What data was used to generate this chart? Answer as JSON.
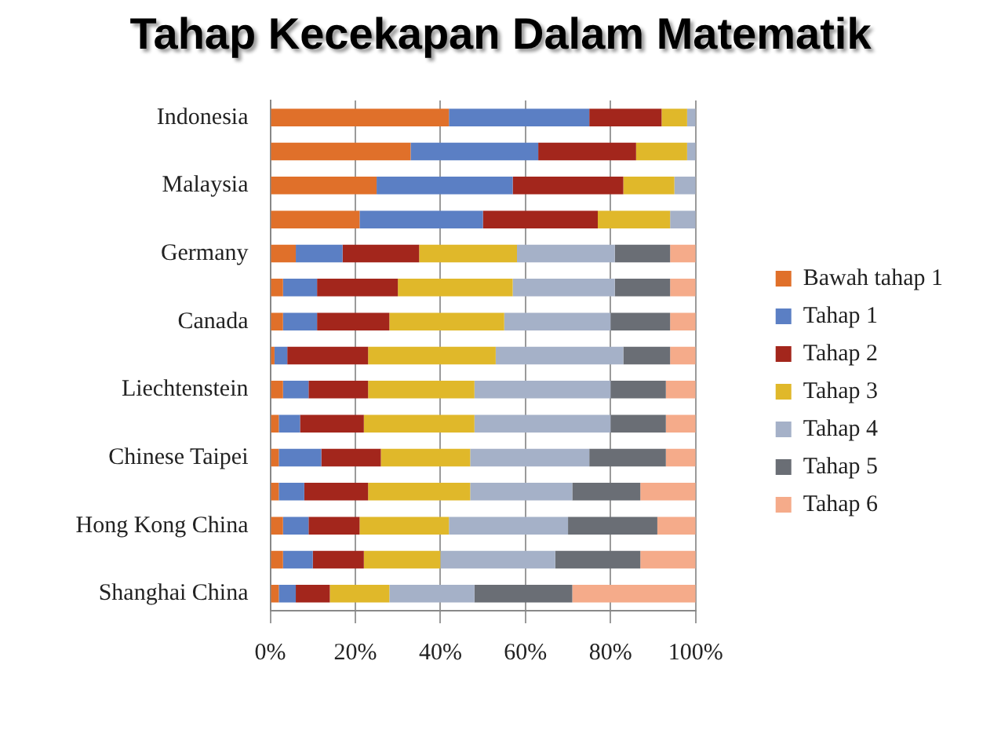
{
  "chart_data": {
    "type": "bar",
    "orientation": "horizontal",
    "stacked": true,
    "title": "Tahap Kecekapan Dalam Matematik",
    "categories": [
      "Indonesia",
      null,
      "Malaysia",
      null,
      "Germany",
      null,
      "Canada",
      null,
      "Liechtenstein",
      null,
      "Chinese Taipei",
      null,
      "Hong Kong China",
      null,
      "Shanghai China"
    ],
    "series": [
      {
        "name": "Bawah tahap 1",
        "color": "#e0702a",
        "values": [
          42,
          33,
          25,
          21,
          6,
          3,
          3,
          1,
          3,
          2,
          2,
          2,
          3,
          3,
          2
        ]
      },
      {
        "name": "Tahap 1",
        "color": "#5b7fc4",
        "values": [
          33,
          30,
          32,
          29,
          11,
          8,
          8,
          3,
          6,
          5,
          10,
          6,
          6,
          7,
          4
        ]
      },
      {
        "name": "Tahap 2",
        "color": "#a3261c",
        "values": [
          17,
          23,
          26,
          27,
          18,
          19,
          17,
          19,
          14,
          15,
          14,
          15,
          12,
          12,
          8
        ]
      },
      {
        "name": "Tahap 3",
        "color": "#e0b82a",
        "values": [
          6,
          12,
          12,
          17,
          23,
          27,
          27,
          30,
          25,
          26,
          21,
          24,
          21,
          18,
          14
        ]
      },
      {
        "name": "Tahap 4",
        "color": "#a5b1c8",
        "values": [
          2,
          2,
          5,
          6,
          23,
          24,
          25,
          30,
          32,
          32,
          28,
          24,
          28,
          27,
          20
        ]
      },
      {
        "name": "Tahap 5",
        "color": "#6a6e75",
        "values": [
          0,
          0,
          0,
          0,
          13,
          13,
          14,
          11,
          13,
          13,
          18,
          16,
          21,
          20,
          23
        ]
      },
      {
        "name": "Tahap 6",
        "color": "#f5ab8a",
        "values": [
          0,
          0,
          0,
          0,
          6,
          6,
          6,
          6,
          7,
          7,
          7,
          13,
          9,
          13,
          29
        ]
      }
    ],
    "xlim": [
      0,
      100
    ],
    "xticks": [
      {
        "value": 0,
        "label": "0%"
      },
      {
        "value": 20,
        "label": "20%"
      },
      {
        "value": 40,
        "label": "40%"
      },
      {
        "value": 60,
        "label": "60%"
      },
      {
        "value": 80,
        "label": "80%"
      },
      {
        "value": 100,
        "label": "100%"
      }
    ],
    "grid": "x",
    "legend": "right"
  }
}
